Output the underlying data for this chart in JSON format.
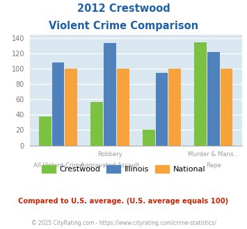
{
  "title_line1": "2012 Crestwood",
  "title_line2": "Violent Crime Comparison",
  "crestwood_vals": [
    38,
    57,
    20,
    135
  ],
  "illinois_vals": [
    108,
    134,
    95,
    122
  ],
  "national_vals": [
    100,
    100,
    100,
    100
  ],
  "color_crestwood": "#7dc142",
  "color_illinois": "#4f81bd",
  "color_national": "#f7a23b",
  "ylim": [
    0,
    145
  ],
  "yticks": [
    0,
    20,
    40,
    60,
    80,
    100,
    120,
    140
  ],
  "plot_bg": "#d9e8f0",
  "top_labels": {
    "1": "Robbery",
    "3": "Murder & Mans..."
  },
  "bot_labels": {
    "0": "All Violent Crime",
    "1": "Aggravated Assault",
    "3": "Rape"
  },
  "legend_labels": [
    "Crestwood",
    "Illinois",
    "National"
  ],
  "note": "Compared to U.S. average. (U.S. average equals 100)",
  "footer": "© 2025 CityRating.com - https://www.cityrating.com/crime-statistics/",
  "title_color": "#2060a8",
  "note_color": "#cc2200",
  "footer_color": "#999999",
  "xlabel_color": "#999999"
}
